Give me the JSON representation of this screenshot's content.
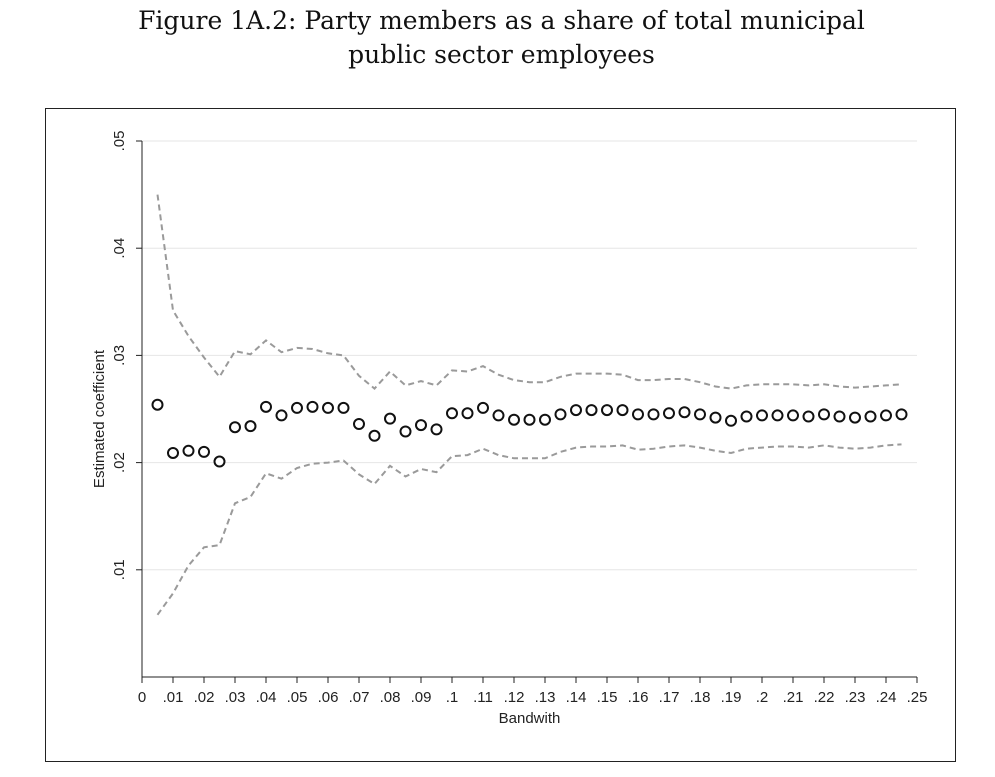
{
  "figure": {
    "title_line1": "Figure 1A.2: Party members as a share of total municipal",
    "title_line2": "public sector employees"
  },
  "chart_data": {
    "type": "scatter",
    "xlabel": "Bandwith",
    "ylabel": "Estimated coefficient",
    "xlim": [
      0,
      0.25
    ],
    "ylim": [
      0,
      0.05
    ],
    "grid": true,
    "colors": {
      "points": "#111111",
      "ci": "#9a9a9a",
      "grid": "#e6e6e6",
      "axis": "#222222"
    },
    "x_ticks": [
      {
        "value": 0,
        "label": "0"
      },
      {
        "value": 0.01,
        "label": ".01"
      },
      {
        "value": 0.02,
        "label": ".02"
      },
      {
        "value": 0.03,
        "label": ".03"
      },
      {
        "value": 0.04,
        "label": ".04"
      },
      {
        "value": 0.05,
        "label": ".05"
      },
      {
        "value": 0.06,
        "label": ".06"
      },
      {
        "value": 0.07,
        "label": ".07"
      },
      {
        "value": 0.08,
        "label": ".08"
      },
      {
        "value": 0.09,
        "label": ".09"
      },
      {
        "value": 0.1,
        "label": ".1"
      },
      {
        "value": 0.11,
        "label": ".11"
      },
      {
        "value": 0.12,
        "label": ".12"
      },
      {
        "value": 0.13,
        "label": ".13"
      },
      {
        "value": 0.14,
        "label": ".14"
      },
      {
        "value": 0.15,
        "label": ".15"
      },
      {
        "value": 0.16,
        "label": ".16"
      },
      {
        "value": 0.17,
        "label": ".17"
      },
      {
        "value": 0.18,
        "label": ".18"
      },
      {
        "value": 0.19,
        "label": ".19"
      },
      {
        "value": 0.2,
        "label": ".2"
      },
      {
        "value": 0.21,
        "label": ".21"
      },
      {
        "value": 0.22,
        "label": ".22"
      },
      {
        "value": 0.23,
        "label": ".23"
      },
      {
        "value": 0.24,
        "label": ".24"
      },
      {
        "value": 0.25,
        "label": ".25"
      }
    ],
    "y_ticks": [
      {
        "value": 0.01,
        "label": ".01"
      },
      {
        "value": 0.02,
        "label": ".02"
      },
      {
        "value": 0.03,
        "label": ".03"
      },
      {
        "value": 0.04,
        "label": ".04"
      },
      {
        "value": 0.05,
        "label": ".05"
      }
    ],
    "x": [
      0.005,
      0.01,
      0.015,
      0.02,
      0.025,
      0.03,
      0.035,
      0.04,
      0.045,
      0.05,
      0.055,
      0.06,
      0.065,
      0.07,
      0.075,
      0.08,
      0.085,
      0.09,
      0.095,
      0.1,
      0.105,
      0.11,
      0.115,
      0.12,
      0.125,
      0.13,
      0.135,
      0.14,
      0.145,
      0.15,
      0.155,
      0.16,
      0.165,
      0.17,
      0.175,
      0.18,
      0.185,
      0.19,
      0.195,
      0.2,
      0.205,
      0.21,
      0.215,
      0.22,
      0.225,
      0.23,
      0.235,
      0.24,
      0.245
    ],
    "series": [
      {
        "values": [
          0.0254,
          0.0209,
          0.0211,
          0.021,
          0.0201,
          0.0233,
          0.0234,
          0.0252,
          0.0244,
          0.0251,
          0.0252,
          0.0251,
          0.0251,
          0.0236,
          0.0225,
          0.0241,
          0.0229,
          0.0235,
          0.0231,
          0.0246,
          0.0246,
          0.0251,
          0.0244,
          0.024,
          0.024,
          0.024,
          0.0245,
          0.0249,
          0.0249,
          0.0249,
          0.0249,
          0.0245,
          0.0245,
          0.0246,
          0.0247,
          0.0245,
          0.0242,
          0.0239,
          0.0243,
          0.0244,
          0.0244,
          0.0244,
          0.0243,
          0.0245,
          0.0243,
          0.0242,
          0.0243,
          0.0244,
          0.0245
        ]
      },
      {
        "values": [
          0.045,
          0.0342,
          0.0318,
          0.0298,
          0.028,
          0.0304,
          0.0301,
          0.0314,
          0.0303,
          0.0307,
          0.0306,
          0.0302,
          0.03,
          0.0281,
          0.0269,
          0.0285,
          0.0272,
          0.0276,
          0.0272,
          0.0286,
          0.0285,
          0.029,
          0.0282,
          0.0277,
          0.0275,
          0.0275,
          0.028,
          0.0283,
          0.0283,
          0.0283,
          0.0282,
          0.0277,
          0.0277,
          0.0278,
          0.0278,
          0.0275,
          0.0271,
          0.0269,
          0.0272,
          0.0273,
          0.0273,
          0.0273,
          0.0272,
          0.0273,
          0.0271,
          0.027,
          0.0271,
          0.0272,
          0.0273
        ]
      },
      {
        "values": [
          0.0058,
          0.0078,
          0.0104,
          0.0121,
          0.0123,
          0.0162,
          0.0168,
          0.019,
          0.0185,
          0.0195,
          0.0199,
          0.02,
          0.0202,
          0.0189,
          0.018,
          0.0197,
          0.0187,
          0.0194,
          0.0191,
          0.0206,
          0.0207,
          0.0213,
          0.0207,
          0.0204,
          0.0204,
          0.0204,
          0.021,
          0.0214,
          0.0215,
          0.0215,
          0.0216,
          0.0212,
          0.0213,
          0.0215,
          0.0216,
          0.0214,
          0.0211,
          0.0209,
          0.0213,
          0.0214,
          0.0215,
          0.0215,
          0.0214,
          0.0216,
          0.0214,
          0.0213,
          0.0214,
          0.0216,
          0.0217
        ]
      }
    ]
  }
}
